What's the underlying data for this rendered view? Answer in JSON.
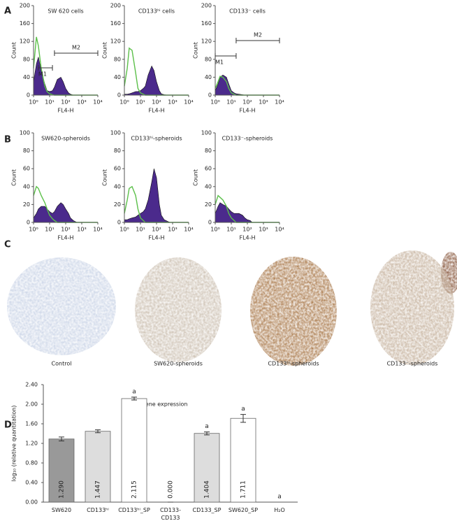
{
  "panel_labels": [
    "A",
    "B",
    "C",
    "D"
  ],
  "images": {
    "labels": [
      "Control",
      "SW620-spheroids",
      "CD133ʰⁱ-spheroids",
      "CD133⁻-spheroids"
    ]
  },
  "chart_data": [
    {
      "type": "histogram",
      "title": "SW 620 cells",
      "xlabel": "FL4-H",
      "ylabel": "Count",
      "log_x": true,
      "xlim": [
        1,
        10000
      ],
      "xticks": [
        {
          "value": 1,
          "label": "10⁰"
        },
        {
          "value": 10,
          "label": "10¹"
        },
        {
          "value": 100,
          "label": "10²"
        },
        {
          "value": 1000,
          "label": "10³"
        },
        {
          "value": 10000,
          "label": "10⁴"
        }
      ],
      "ylim": [
        0,
        200
      ],
      "yticks": [
        0,
        40,
        80,
        120,
        160,
        200
      ],
      "x": [
        1,
        1.5,
        2,
        3,
        5,
        7,
        10,
        15,
        20,
        30,
        50,
        70,
        100,
        150,
        200,
        300,
        500,
        700,
        1000,
        10000
      ],
      "series": [
        {
          "color": "#4b2a8c",
          "values": [
            30,
            70,
            85,
            55,
            25,
            10,
            8,
            10,
            18,
            35,
            40,
            30,
            15,
            5,
            2,
            0,
            0,
            0,
            0,
            0
          ]
        },
        {
          "color": "#5cc04a",
          "values": [
            60,
            130,
            110,
            60,
            20,
            8,
            3,
            1,
            0,
            0,
            0,
            0,
            0,
            0,
            0,
            0,
            0,
            0,
            0,
            0
          ]
        }
      ],
      "markers": [
        {
          "label": "M1",
          "range": [
            2,
            15
          ]
        },
        {
          "label": "M2",
          "range": [
            20,
            10000
          ]
        }
      ]
    },
    {
      "type": "histogram",
      "title": "CD133ʰⁱ cells",
      "xlabel": "FL4-H",
      "ylabel": "Count",
      "log_x": true,
      "xlim": [
        1,
        10000
      ],
      "xticks": [
        {
          "value": 1,
          "label": "10⁰"
        },
        {
          "value": 10,
          "label": "10¹"
        },
        {
          "value": 100,
          "label": "10²"
        },
        {
          "value": 1000,
          "label": "10³"
        },
        {
          "value": 10000,
          "label": "10⁴"
        }
      ],
      "ylim": [
        0,
        200
      ],
      "yticks": [
        0,
        40,
        80,
        120,
        160,
        200
      ],
      "x": [
        1,
        1.5,
        2,
        3,
        5,
        7,
        10,
        15,
        20,
        30,
        50,
        70,
        100,
        150,
        200,
        300,
        500,
        700,
        1000,
        10000
      ],
      "series": [
        {
          "color": "#4b2a8c",
          "values": [
            2,
            2,
            3,
            5,
            8,
            8,
            10,
            15,
            20,
            45,
            65,
            55,
            30,
            10,
            3,
            1,
            0,
            0,
            0,
            0
          ]
        },
        {
          "color": "#5cc04a",
          "values": [
            20,
            60,
            105,
            100,
            50,
            15,
            5,
            2,
            0,
            0,
            0,
            0,
            0,
            0,
            0,
            0,
            0,
            0,
            0,
            0
          ]
        }
      ]
    },
    {
      "type": "histogram",
      "title": "CD133⁻ cells",
      "xlabel": "FL4-H",
      "ylabel": "Count",
      "log_x": true,
      "xlim": [
        1,
        10000
      ],
      "xticks": [
        {
          "value": 1,
          "label": "10⁰"
        },
        {
          "value": 10,
          "label": "10¹"
        },
        {
          "value": 100,
          "label": "10²"
        },
        {
          "value": 1000,
          "label": "10³"
        },
        {
          "value": 10000,
          "label": "10⁴"
        }
      ],
      "ylim": [
        0,
        200
      ],
      "yticks": [
        0,
        40,
        80,
        120,
        160,
        200
      ],
      "x": [
        1,
        1.5,
        2,
        3,
        5,
        7,
        10,
        15,
        20,
        30,
        50,
        70,
        100,
        150,
        200,
        300,
        500,
        700,
        1000,
        10000
      ],
      "series": [
        {
          "color": "#4b2a8c",
          "values": [
            10,
            25,
            40,
            45,
            40,
            25,
            10,
            5,
            3,
            2,
            1,
            0,
            0,
            0,
            0,
            0,
            0,
            0,
            0,
            0
          ]
        },
        {
          "color": "#5cc04a",
          "values": [
            15,
            30,
            42,
            40,
            30,
            15,
            5,
            2,
            0,
            0,
            0,
            0,
            0,
            0,
            0,
            0,
            0,
            0,
            0,
            0
          ]
        }
      ],
      "markers": [
        {
          "label": "M1",
          "range": [
            1,
            20
          ]
        },
        {
          "label": "M2",
          "range": [
            20,
            10000
          ]
        }
      ]
    },
    {
      "type": "histogram",
      "title": "SW620-spheroids",
      "xlabel": "FL4-H",
      "ylabel": "Count",
      "log_x": true,
      "xlim": [
        1,
        10000
      ],
      "xticks": [
        {
          "value": 1,
          "label": "10⁰"
        },
        {
          "value": 10,
          "label": "10¹"
        },
        {
          "value": 100,
          "label": "10²"
        },
        {
          "value": 1000,
          "label": "10³"
        },
        {
          "value": 10000,
          "label": "10⁴"
        }
      ],
      "ylim": [
        0,
        100
      ],
      "yticks": [
        0,
        20,
        40,
        60,
        80,
        100
      ],
      "x": [
        1,
        1.5,
        2,
        3,
        5,
        7,
        10,
        15,
        20,
        30,
        50,
        70,
        100,
        150,
        200,
        300,
        500,
        700,
        1000,
        10000
      ],
      "series": [
        {
          "color": "#4b2a8c",
          "values": [
            5,
            10,
            15,
            18,
            18,
            15,
            12,
            10,
            12,
            18,
            22,
            20,
            15,
            10,
            5,
            2,
            0,
            0,
            0,
            0
          ]
        },
        {
          "color": "#5cc04a",
          "values": [
            30,
            40,
            38,
            30,
            22,
            15,
            8,
            4,
            2,
            0,
            0,
            0,
            0,
            0,
            0,
            0,
            0,
            0,
            0,
            0
          ]
        }
      ]
    },
    {
      "type": "histogram",
      "title": "CD133ʰⁱ-spheroids",
      "xlabel": "FL4-H",
      "ylabel": "Count",
      "log_x": true,
      "xlim": [
        1,
        10000
      ],
      "xticks": [
        {
          "value": 1,
          "label": "10⁰"
        },
        {
          "value": 10,
          "label": "10¹"
        },
        {
          "value": 100,
          "label": "10²"
        },
        {
          "value": 1000,
          "label": "10³"
        },
        {
          "value": 10000,
          "label": "10⁴"
        }
      ],
      "ylim": [
        0,
        100
      ],
      "yticks": [
        0,
        20,
        40,
        60,
        80,
        100
      ],
      "x": [
        1,
        1.5,
        2,
        3,
        5,
        7,
        10,
        15,
        20,
        30,
        50,
        70,
        100,
        150,
        200,
        300,
        500,
        700,
        1000,
        10000
      ],
      "series": [
        {
          "color": "#4b2a8c",
          "values": [
            3,
            3,
            4,
            5,
            6,
            8,
            10,
            12,
            15,
            25,
            45,
            60,
            50,
            20,
            8,
            3,
            1,
            0,
            0,
            0
          ]
        },
        {
          "color": "#5cc04a",
          "values": [
            10,
            25,
            38,
            40,
            30,
            15,
            5,
            2,
            0,
            0,
            0,
            0,
            0,
            0,
            0,
            0,
            0,
            0,
            0,
            0
          ]
        }
      ]
    },
    {
      "type": "histogram",
      "title": "CD133⁻-spheroids",
      "xlabel": "FL4-H",
      "ylabel": "Count",
      "log_x": true,
      "xlim": [
        1,
        10000
      ],
      "xticks": [
        {
          "value": 1,
          "label": "10⁰"
        },
        {
          "value": 10,
          "label": "10¹"
        },
        {
          "value": 100,
          "label": "10²"
        },
        {
          "value": 1000,
          "label": "10³"
        },
        {
          "value": 10000,
          "label": "10⁴"
        }
      ],
      "ylim": [
        0,
        100
      ],
      "yticks": [
        0,
        20,
        40,
        60,
        80,
        100
      ],
      "x": [
        1,
        1.5,
        2,
        3,
        5,
        7,
        10,
        15,
        20,
        30,
        50,
        70,
        100,
        150,
        200,
        300,
        500,
        700,
        1000,
        10000
      ],
      "series": [
        {
          "color": "#4b2a8c",
          "values": [
            10,
            18,
            22,
            20,
            18,
            15,
            12,
            10,
            10,
            10,
            8,
            5,
            3,
            2,
            0,
            0,
            0,
            0,
            0,
            0
          ]
        },
        {
          "color": "#5cc04a",
          "values": [
            20,
            30,
            28,
            25,
            18,
            10,
            5,
            2,
            0,
            0,
            0,
            0,
            0,
            0,
            0,
            0,
            0,
            0,
            0,
            0
          ]
        }
      ]
    },
    {
      "type": "bar",
      "title": "Gene expression",
      "ylabel": "log₁₀ (relative quantitation)",
      "categories": [
        "SW620",
        "CD133ʰⁱ",
        "CD133ʰⁱ_SP",
        "CD133-\nCD133",
        "CD133_SP",
        "SW620_SP",
        "H₂O"
      ],
      "values": [
        1.29,
        1.447,
        2.115,
        0,
        1.404,
        1.711,
        null
      ],
      "value_labels": [
        "1.290",
        "1.447",
        "2.115",
        "0.000",
        "1.404",
        "1.711",
        null
      ],
      "errors": [
        0.04,
        0.03,
        0.03,
        0,
        0.03,
        0.08,
        null
      ],
      "colors": [
        "#999999",
        "#dddddd",
        "#ffffff",
        "#ffffff",
        "#dddddd",
        "#ffffff",
        "#ffffff"
      ],
      "annotations": [
        null,
        null,
        "a",
        null,
        "a",
        "a",
        "a"
      ],
      "ylim": [
        0,
        2.4
      ],
      "yticks": [
        {
          "value": 0,
          "label": "0.00"
        },
        {
          "value": 0.4,
          "label": "0.40"
        },
        {
          "value": 0.8,
          "label": "0.80"
        },
        {
          "value": 1.2,
          "label": "1.20"
        },
        {
          "value": 1.6,
          "label": "1.60"
        },
        {
          "value": 2.0,
          "label": "2.00"
        },
        {
          "value": 2.4,
          "label": "2.40"
        }
      ]
    }
  ]
}
